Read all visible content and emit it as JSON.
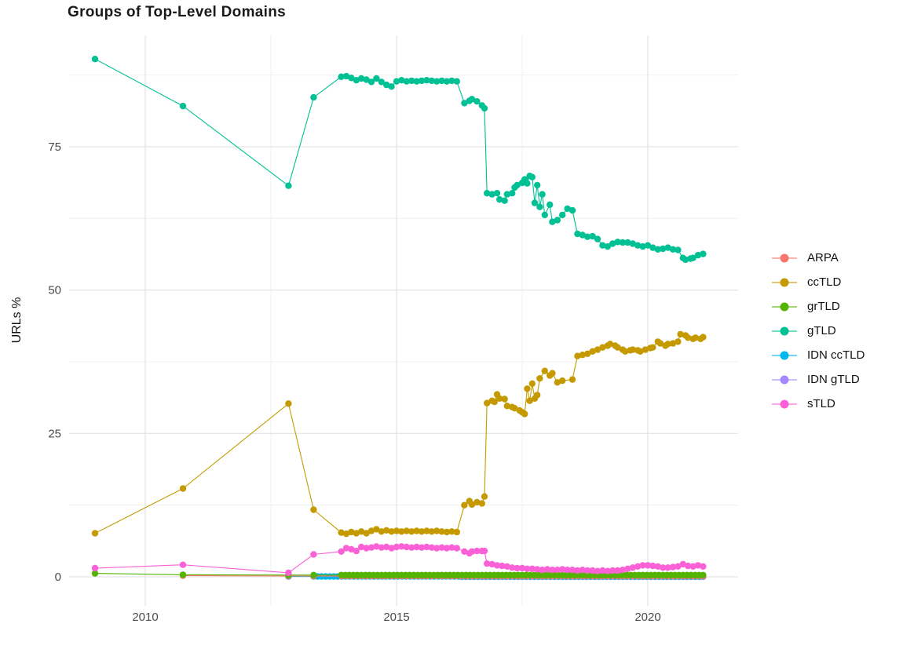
{
  "title": "Groups of Top-Level Domains",
  "chart_data": {
    "type": "line",
    "title": "Groups of Top-Level Domains",
    "xlabel": "",
    "ylabel": "URLs %",
    "x_ticks": [
      2010,
      2015,
      2020
    ],
    "y_ticks": [
      0,
      25,
      50,
      75
    ],
    "xlim": [
      2008.5,
      2021.8
    ],
    "ylim": [
      -5,
      94.5
    ],
    "grid": "major and minor light-gray gridlines on white panel",
    "legend_position": "right",
    "point_style": "filled circles with connecting thin lines",
    "series": [
      {
        "name": "ARPA",
        "color": "#F8766D",
        "z": 2,
        "points": [
          [
            2010.75,
            0.2
          ],
          [
            2012.85,
            0.15
          ],
          [
            2013.35,
            0.12
          ]
        ],
        "flat": {
          "from": 2013.9,
          "to": 2021.1,
          "step": 0.1,
          "value": 0.12
        }
      },
      {
        "name": "ccTLD",
        "color": "#C49A00",
        "z": 5,
        "points": [
          [
            2009,
            7.6
          ],
          [
            2010.75,
            15.4
          ],
          [
            2012.85,
            30.2
          ],
          [
            2013.35,
            11.7
          ],
          [
            2013.9,
            7.7
          ],
          [
            2014,
            7.5
          ],
          [
            2014.1,
            7.8
          ],
          [
            2014.2,
            7.6
          ],
          [
            2014.3,
            7.9
          ],
          [
            2014.4,
            7.6
          ],
          [
            2014.5,
            8
          ],
          [
            2014.6,
            8.3
          ],
          [
            2014.7,
            7.9
          ],
          [
            2014.8,
            8.1
          ],
          [
            2014.9,
            7.9
          ],
          [
            2015,
            8
          ],
          [
            2015.1,
            7.9
          ],
          [
            2015.2,
            8
          ],
          [
            2015.3,
            7.9
          ],
          [
            2015.4,
            8
          ],
          [
            2015.5,
            7.9
          ],
          [
            2015.6,
            8
          ],
          [
            2015.7,
            7.9
          ],
          [
            2015.8,
            8
          ],
          [
            2015.9,
            7.9
          ],
          [
            2016,
            7.8
          ],
          [
            2016.1,
            7.9
          ],
          [
            2016.2,
            7.8
          ],
          [
            2016.35,
            12.5
          ],
          [
            2016.45,
            13.2
          ],
          [
            2016.5,
            12.6
          ],
          [
            2016.6,
            13
          ],
          [
            2016.7,
            12.8
          ],
          [
            2016.75,
            14
          ],
          [
            2016.8,
            30.3
          ],
          [
            2016.9,
            30.7
          ],
          [
            2016.95,
            30.5
          ],
          [
            2017,
            31.8
          ],
          [
            2017.05,
            31.1
          ],
          [
            2017.15,
            31
          ],
          [
            2017.2,
            29.8
          ],
          [
            2017.3,
            29.6
          ],
          [
            2017.35,
            29.4
          ],
          [
            2017.45,
            29
          ],
          [
            2017.5,
            28.7
          ],
          [
            2017.55,
            28.4
          ],
          [
            2017.6,
            32.8
          ],
          [
            2017.65,
            30.7
          ],
          [
            2017.7,
            33.7
          ],
          [
            2017.75,
            31.1
          ],
          [
            2017.8,
            31.7
          ],
          [
            2017.85,
            34.6
          ],
          [
            2017.95,
            35.9
          ],
          [
            2018.05,
            35.1
          ],
          [
            2018.1,
            35.5
          ],
          [
            2018.2,
            33.9
          ],
          [
            2018.3,
            34.2
          ],
          [
            2018.5,
            34.4
          ],
          [
            2018.6,
            38.5
          ],
          [
            2018.7,
            38.7
          ],
          [
            2018.8,
            38.9
          ],
          [
            2018.9,
            39.3
          ],
          [
            2019,
            39.6
          ],
          [
            2019.1,
            40
          ],
          [
            2019.2,
            40.3
          ],
          [
            2019.25,
            40.6
          ],
          [
            2019.35,
            40.3
          ],
          [
            2019.4,
            40
          ],
          [
            2019.5,
            39.6
          ],
          [
            2019.55,
            39.3
          ],
          [
            2019.65,
            39.5
          ],
          [
            2019.7,
            39.6
          ],
          [
            2019.8,
            39.5
          ],
          [
            2019.85,
            39.3
          ],
          [
            2019.95,
            39.6
          ],
          [
            2020.05,
            39.9
          ],
          [
            2020.1,
            40
          ],
          [
            2020.2,
            41
          ],
          [
            2020.25,
            40.7
          ],
          [
            2020.35,
            40.3
          ],
          [
            2020.4,
            40.6
          ],
          [
            2020.5,
            40.7
          ],
          [
            2020.6,
            41
          ],
          [
            2020.65,
            42.3
          ],
          [
            2020.75,
            42.1
          ],
          [
            2020.8,
            41.7
          ],
          [
            2020.9,
            41.5
          ],
          [
            2020.95,
            41.7
          ],
          [
            2021.05,
            41.5
          ],
          [
            2021.1,
            41.8
          ]
        ]
      },
      {
        "name": "grTLD",
        "color": "#53B400",
        "z": 3,
        "points": [
          [
            2009,
            0.6
          ],
          [
            2010.75,
            0.35
          ],
          [
            2012.85,
            0.3
          ],
          [
            2013.35,
            0.3
          ]
        ],
        "flat": {
          "from": 2013.9,
          "to": 2021.1,
          "step": 0.08,
          "value": 0.3
        }
      },
      {
        "name": "gTLD",
        "color": "#00C094",
        "z": 6,
        "points": [
          [
            2009,
            90.3
          ],
          [
            2010.75,
            82.1
          ],
          [
            2012.85,
            68.2
          ],
          [
            2013.35,
            83.6
          ],
          [
            2013.9,
            87.2
          ],
          [
            2014,
            87.3
          ],
          [
            2014.1,
            87
          ],
          [
            2014.2,
            86.6
          ],
          [
            2014.3,
            86.9
          ],
          [
            2014.4,
            86.7
          ],
          [
            2014.5,
            86.3
          ],
          [
            2014.6,
            86.9
          ],
          [
            2014.7,
            86.3
          ],
          [
            2014.8,
            85.8
          ],
          [
            2014.9,
            85.5
          ],
          [
            2015,
            86.4
          ],
          [
            2015.1,
            86.6
          ],
          [
            2015.2,
            86.4
          ],
          [
            2015.3,
            86.5
          ],
          [
            2015.4,
            86.4
          ],
          [
            2015.5,
            86.5
          ],
          [
            2015.6,
            86.6
          ],
          [
            2015.7,
            86.5
          ],
          [
            2015.8,
            86.4
          ],
          [
            2015.9,
            86.5
          ],
          [
            2016,
            86.4
          ],
          [
            2016.1,
            86.5
          ],
          [
            2016.2,
            86.4
          ],
          [
            2016.35,
            82.6
          ],
          [
            2016.45,
            83
          ],
          [
            2016.5,
            83.3
          ],
          [
            2016.6,
            82.9
          ],
          [
            2016.7,
            82.2
          ],
          [
            2016.75,
            81.7
          ],
          [
            2016.8,
            66.9
          ],
          [
            2016.9,
            66.7
          ],
          [
            2017,
            66.9
          ],
          [
            2017.05,
            65.8
          ],
          [
            2017.15,
            65.6
          ],
          [
            2017.2,
            66.7
          ],
          [
            2017.3,
            66.9
          ],
          [
            2017.35,
            67.9
          ],
          [
            2017.4,
            68.3
          ],
          [
            2017.5,
            68.7
          ],
          [
            2017.55,
            69.3
          ],
          [
            2017.6,
            68.6
          ],
          [
            2017.65,
            69.9
          ],
          [
            2017.7,
            69.7
          ],
          [
            2017.75,
            65.2
          ],
          [
            2017.8,
            68.3
          ],
          [
            2017.85,
            64.5
          ],
          [
            2017.9,
            66.7
          ],
          [
            2017.95,
            63.1
          ],
          [
            2018.05,
            64.9
          ],
          [
            2018.1,
            61.9
          ],
          [
            2018.2,
            62.2
          ],
          [
            2018.3,
            63.1
          ],
          [
            2018.4,
            64.2
          ],
          [
            2018.5,
            63.9
          ],
          [
            2018.6,
            59.8
          ],
          [
            2018.7,
            59.6
          ],
          [
            2018.8,
            59.3
          ],
          [
            2018.9,
            59.4
          ],
          [
            2019,
            58.9
          ],
          [
            2019.1,
            57.8
          ],
          [
            2019.2,
            57.6
          ],
          [
            2019.3,
            58.1
          ],
          [
            2019.4,
            58.4
          ],
          [
            2019.5,
            58.3
          ],
          [
            2019.6,
            58.3
          ],
          [
            2019.7,
            58.1
          ],
          [
            2019.8,
            57.8
          ],
          [
            2019.9,
            57.6
          ],
          [
            2020,
            57.8
          ],
          [
            2020.1,
            57.4
          ],
          [
            2020.2,
            57.1
          ],
          [
            2020.3,
            57.2
          ],
          [
            2020.4,
            57.4
          ],
          [
            2020.5,
            57.1
          ],
          [
            2020.6,
            57
          ],
          [
            2020.7,
            55.6
          ],
          [
            2020.75,
            55.3
          ],
          [
            2020.85,
            55.5
          ],
          [
            2020.9,
            55.6
          ],
          [
            2021,
            56.1
          ],
          [
            2021.1,
            56.3
          ]
        ]
      },
      {
        "name": "IDN ccTLD",
        "color": "#00B6EB",
        "z": 1,
        "points": [
          [
            2012.85,
            0.05
          ]
        ],
        "flat": {
          "from": 2013.35,
          "to": 2021.1,
          "step": 0.08,
          "value": 0.05
        }
      },
      {
        "name": "IDN gTLD",
        "color": "#A58AFF",
        "z": 0,
        "points": [],
        "flat": {
          "from": 2016.3,
          "to": 2021.1,
          "step": 0.08,
          "value": 0.0
        }
      },
      {
        "name": "sTLD",
        "color": "#FB61D7",
        "z": 4,
        "points": [
          [
            2009,
            1.5
          ],
          [
            2010.75,
            2.1
          ],
          [
            2012.85,
            0.7
          ],
          [
            2013.35,
            3.9
          ],
          [
            2013.9,
            4.4
          ],
          [
            2014,
            5
          ],
          [
            2014.1,
            4.8
          ],
          [
            2014.2,
            4.5
          ],
          [
            2014.3,
            5.2
          ],
          [
            2014.4,
            5
          ],
          [
            2014.5,
            5.1
          ],
          [
            2014.6,
            5.3
          ],
          [
            2014.7,
            5.1
          ],
          [
            2014.8,
            5.2
          ],
          [
            2014.9,
            5
          ],
          [
            2015,
            5.2
          ],
          [
            2015.1,
            5.3
          ],
          [
            2015.2,
            5.2
          ],
          [
            2015.3,
            5.1
          ],
          [
            2015.4,
            5.2
          ],
          [
            2015.5,
            5.1
          ],
          [
            2015.6,
            5.2
          ],
          [
            2015.7,
            5.1
          ],
          [
            2015.8,
            5
          ],
          [
            2015.9,
            5.1
          ],
          [
            2016,
            5
          ],
          [
            2016.1,
            5.1
          ],
          [
            2016.2,
            5
          ],
          [
            2016.35,
            4.4
          ],
          [
            2016.45,
            4.1
          ],
          [
            2016.5,
            4.4
          ],
          [
            2016.6,
            4.5
          ],
          [
            2016.7,
            4.5
          ],
          [
            2016.75,
            4.5
          ],
          [
            2016.8,
            2.3
          ],
          [
            2016.9,
            2.2
          ],
          [
            2017,
            2
          ],
          [
            2017.1,
            1.9
          ],
          [
            2017.2,
            1.8
          ],
          [
            2017.3,
            1.6
          ],
          [
            2017.4,
            1.5
          ],
          [
            2017.5,
            1.5
          ],
          [
            2017.6,
            1.4
          ],
          [
            2017.7,
            1.4
          ],
          [
            2017.8,
            1.3
          ],
          [
            2017.9,
            1.2
          ],
          [
            2018,
            1.3
          ],
          [
            2018.1,
            1.2
          ],
          [
            2018.2,
            1.2
          ],
          [
            2018.3,
            1.3
          ],
          [
            2018.4,
            1.2
          ],
          [
            2018.5,
            1.2
          ],
          [
            2018.6,
            1.1
          ],
          [
            2018.7,
            1.2
          ],
          [
            2018.8,
            1.1
          ],
          [
            2018.9,
            1.1
          ],
          [
            2019,
            1
          ],
          [
            2019.1,
            1.1
          ],
          [
            2019.2,
            1
          ],
          [
            2019.3,
            1.1
          ],
          [
            2019.4,
            1.1
          ],
          [
            2019.5,
            1.2
          ],
          [
            2019.6,
            1.4
          ],
          [
            2019.7,
            1.6
          ],
          [
            2019.8,
            1.8
          ],
          [
            2019.9,
            2
          ],
          [
            2020,
            2
          ],
          [
            2020.1,
            1.9
          ],
          [
            2020.2,
            1.8
          ],
          [
            2020.3,
            1.6
          ],
          [
            2020.4,
            1.6
          ],
          [
            2020.5,
            1.7
          ],
          [
            2020.6,
            1.8
          ],
          [
            2020.7,
            2.2
          ],
          [
            2020.8,
            1.9
          ],
          [
            2020.9,
            1.8
          ],
          [
            2021,
            2
          ],
          [
            2021.1,
            1.8
          ]
        ]
      }
    ]
  }
}
